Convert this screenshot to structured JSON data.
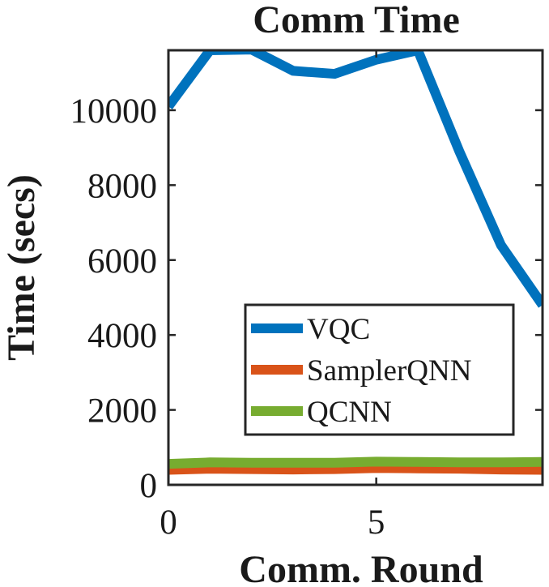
{
  "chart_data": {
    "type": "line",
    "title": "Comm Time",
    "xlabel": "Comm. Round",
    "ylabel": "Time (secs)",
    "xlim": [
      0,
      9
    ],
    "ylim": [
      0,
      11600
    ],
    "xticks": [
      0,
      5
    ],
    "yticks": [
      0,
      2000,
      4000,
      6000,
      8000,
      10000
    ],
    "legend_position": "lower-right-inside",
    "x": [
      0,
      1,
      2,
      3,
      4,
      5,
      6,
      7,
      8,
      9
    ],
    "series": [
      {
        "name": "VQC",
        "color": "#0072BD",
        "values": [
          10100,
          11600,
          11620,
          11050,
          10970,
          11350,
          11600,
          8900,
          6400,
          4800
        ]
      },
      {
        "name": "SamplerQNN",
        "color": "#D95319",
        "values": [
          400,
          430,
          420,
          410,
          420,
          450,
          440,
          430,
          410,
          400
        ]
      },
      {
        "name": "QCNN",
        "color": "#77AC30",
        "values": [
          560,
          600,
          590,
          590,
          590,
          620,
          610,
          600,
          600,
          610
        ]
      }
    ]
  }
}
